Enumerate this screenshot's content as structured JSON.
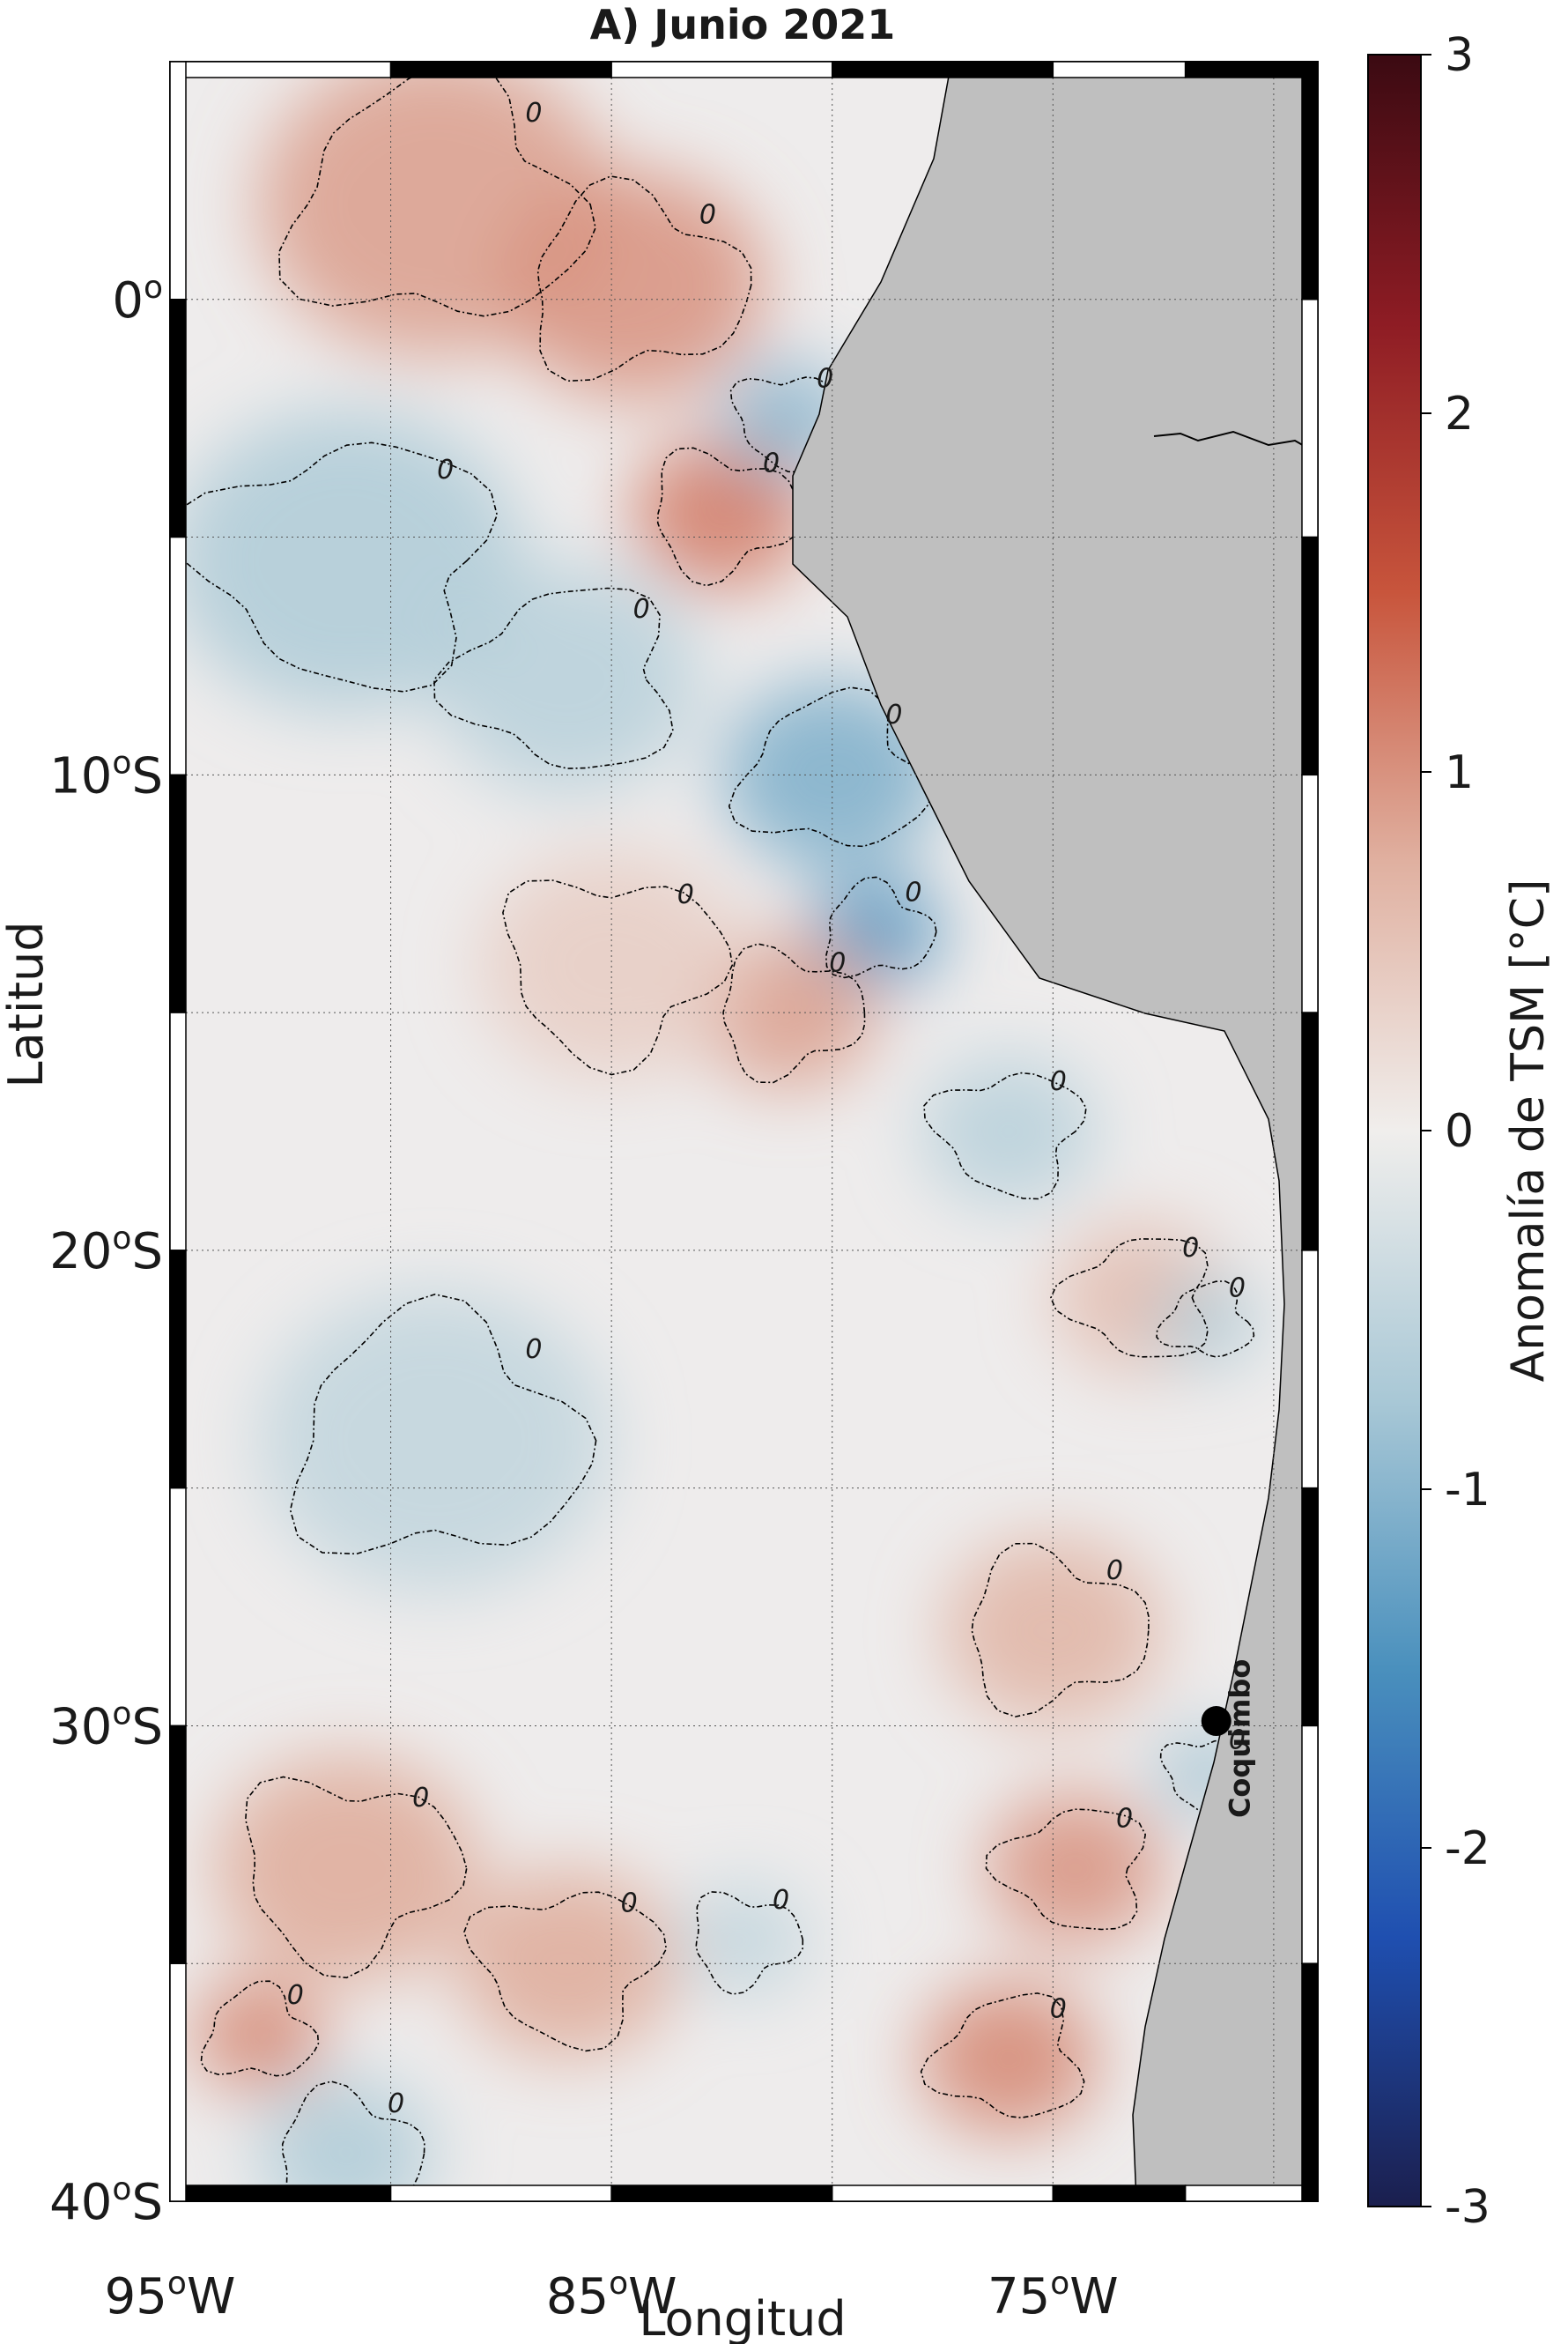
{
  "title": "A) Junio 2021",
  "axes": {
    "xlabel": "Longitud",
    "ylabel": "Latitud",
    "lon_range": [
      -95,
      -69
    ],
    "lat_range": [
      -40,
      5
    ],
    "x_ticks": [
      {
        "value": -95,
        "label": "95",
        "sup": "o",
        "hem": "W"
      },
      {
        "value": -85,
        "label": "85",
        "sup": "o",
        "hem": "W"
      },
      {
        "value": -75,
        "label": "75",
        "sup": "o",
        "hem": "W"
      }
    ],
    "y_ticks": [
      {
        "value": 0,
        "label": "0",
        "sup": "o",
        "hem": ""
      },
      {
        "value": -10,
        "label": "10",
        "sup": "o",
        "hem": "S"
      },
      {
        "value": -20,
        "label": "20",
        "sup": "o",
        "hem": "S"
      },
      {
        "value": -30,
        "label": "30",
        "sup": "o",
        "hem": "S"
      },
      {
        "value": -40,
        "label": "40",
        "sup": "o",
        "hem": "S"
      }
    ],
    "grid": true
  },
  "colorbar": {
    "label": "Anomalía de TSM [°C]",
    "min": -3,
    "max": 3,
    "ticks": [
      {
        "value": 3,
        "label": "3"
      },
      {
        "value": 2,
        "label": "2"
      },
      {
        "value": 1,
        "label": "1"
      },
      {
        "value": 0,
        "label": "0"
      },
      {
        "value": -1,
        "label": "-1"
      },
      {
        "value": -2,
        "label": "-2"
      },
      {
        "value": -3,
        "label": "-3"
      }
    ],
    "colors": [
      "#1b1f4e",
      "#1f4fb0",
      "#4a90bd",
      "#a9c8d6",
      "#f0eeec",
      "#e0b0a0",
      "#c8553c",
      "#8e1c24",
      "#3b0a12"
    ]
  },
  "colors": {
    "land": "#bfbfbf",
    "frame": "#000000",
    "contour": "#000000"
  },
  "station": {
    "name": "Coquimbo",
    "lon": -71.3,
    "lat": -29.9
  },
  "zero_contour_label": "0",
  "anomaly_regions": [
    {
      "lon": -89,
      "lat": 2,
      "v": 0.9,
      "r": 4
    },
    {
      "lon": -84.5,
      "lat": 0.3,
      "v": 1.0,
      "r": 3
    },
    {
      "lon": -82.5,
      "lat": -4.5,
      "v": 1.2,
      "r": 2
    },
    {
      "lon": -81,
      "lat": -2.5,
      "v": -1.0,
      "r": 1.5
    },
    {
      "lon": -91,
      "lat": -5.5,
      "v": -0.7,
      "r": 4
    },
    {
      "lon": -86,
      "lat": -8,
      "v": -0.6,
      "r": 3
    },
    {
      "lon": -80,
      "lat": -10,
      "v": -1.1,
      "r": 2.5
    },
    {
      "lon": -79,
      "lat": -13.3,
      "v": -1.4,
      "r": 1.5
    },
    {
      "lon": -81,
      "lat": -15,
      "v": 0.9,
      "r": 2
    },
    {
      "lon": -85,
      "lat": -14,
      "v": 0.4,
      "r": 3
    },
    {
      "lon": -76,
      "lat": -17.5,
      "v": -0.6,
      "r": 2
    },
    {
      "lon": -73,
      "lat": -21,
      "v": 0.6,
      "r": 2
    },
    {
      "lon": -71.5,
      "lat": -21.5,
      "v": -0.7,
      "r": 1.2
    },
    {
      "lon": -89,
      "lat": -24,
      "v": -0.5,
      "r": 4
    },
    {
      "lon": -75,
      "lat": -28,
      "v": 0.7,
      "r": 2.5
    },
    {
      "lon": -91,
      "lat": -33,
      "v": 0.8,
      "r": 3
    },
    {
      "lon": -86,
      "lat": -35,
      "v": 0.8,
      "r": 2.5
    },
    {
      "lon": -74.5,
      "lat": -33,
      "v": 1.0,
      "r": 2
    },
    {
      "lon": -76,
      "lat": -37,
      "v": 1.1,
      "r": 2
    },
    {
      "lon": -93,
      "lat": -36.5,
      "v": 1.1,
      "r": 1.5
    },
    {
      "lon": -91,
      "lat": -39,
      "v": -0.7,
      "r": 2
    },
    {
      "lon": -82,
      "lat": -34.5,
      "v": -0.5,
      "r": 1.5
    },
    {
      "lon": -71.5,
      "lat": -31,
      "v": -0.8,
      "r": 1.2
    }
  ]
}
